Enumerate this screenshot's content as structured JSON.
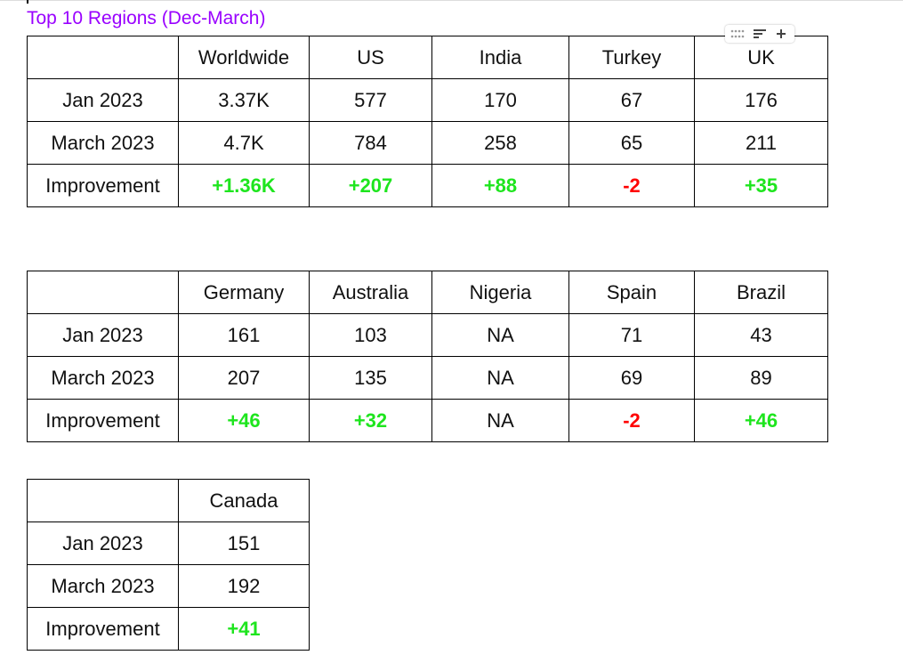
{
  "title": "Top 10 Regions (Dec-March)",
  "tables": [
    {
      "header": [
        null,
        "Worldwide",
        "US",
        "India",
        "Turkey",
        "UK"
      ],
      "rows": [
        [
          "Jan 2023",
          "3.37K",
          "577",
          "170",
          "67",
          "176"
        ],
        [
          "March 2023",
          "4.7K",
          "784",
          "258",
          "65",
          "211"
        ],
        [
          "Improvement",
          {
            "text": "+1.36K",
            "color": "#1ee51e"
          },
          {
            "text": "+207",
            "color": "#1ee51e"
          },
          {
            "text": "+88",
            "color": "#1ee51e"
          },
          {
            "text": "-2",
            "color": "#ff0000"
          },
          {
            "text": "+35",
            "color": "#1ee51e"
          }
        ]
      ]
    },
    {
      "header": [
        null,
        "Germany",
        "Australia",
        "Nigeria",
        "Spain",
        "Brazil"
      ],
      "rows": [
        [
          "Jan 2023",
          "161",
          "103",
          "NA",
          "71",
          "43"
        ],
        [
          "March 2023",
          "207",
          "135",
          "NA",
          "69",
          "89"
        ],
        [
          "Improvement",
          {
            "text": "+46",
            "color": "#1ee51e"
          },
          {
            "text": "+32",
            "color": "#1ee51e"
          },
          "NA",
          {
            "text": "-2",
            "color": "#ff0000"
          },
          {
            "text": "+46",
            "color": "#1ee51e"
          }
        ]
      ]
    },
    {
      "header": [
        null,
        "Canada"
      ],
      "rows": [
        [
          "Jan 2023",
          "151"
        ],
        [
          "March 2023",
          "192"
        ],
        [
          "Improvement",
          {
            "text": "+41",
            "color": "#1ee51e"
          }
        ]
      ]
    }
  ]
}
